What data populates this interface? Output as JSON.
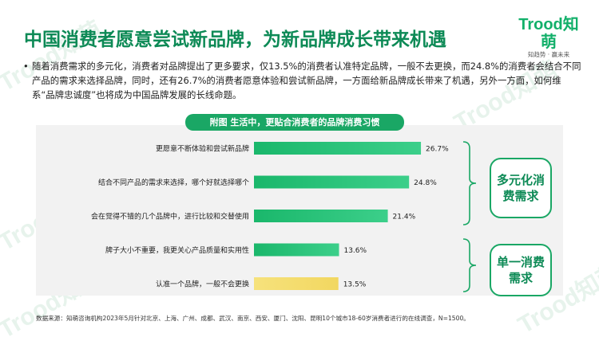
{
  "title": "中国消费者愿意尝试新品牌，为新品牌成长带来机遇",
  "logo": {
    "brand": "Trood知萌",
    "tagline": "知趋势 · 赢未来"
  },
  "bullet": "随着消费需求的多元化，消费者对品牌提出了更多要求，仅13.5%的消费者认准特定品牌，一般不去更换，而24.8%的消费者会结合不同产品的需求来选择品牌，同时，还有26.7%的消费者愿意体验和尝试新品牌，一方面给新品牌成长带来了机遇，另外一方面，如何维系“品牌忠诚度”也将成为中国品牌发展的长线命题。",
  "watermark": "Trood知萌",
  "groups": {
    "diverse": "多元化消费需求",
    "single": "单一消费需求"
  },
  "source": "数据来源：知萌咨询机构2023年5月针对北京、上海、广州、成都、武汉、南京、西安、厦门、沈阳、昆明10个城市18-60岁消费者进行的在线调查，N=1500。",
  "colors": {
    "green_bar": "#1ab76b",
    "green_bar_light": "#3ccf8a",
    "yellow_bar": "#f2d760",
    "accent": "#0d8a56"
  },
  "chart_data": {
    "type": "bar",
    "orientation": "horizontal",
    "title": "附图 生活中，更贴合消费者的品牌消费习惯",
    "categories": [
      "更愿意不断体验和尝试新品牌",
      "结合不同产品的需求来选择，哪个好就选择哪个",
      "会在觉得不错的几个品牌中，进行比较和交替使用",
      "牌子大小不重要，我更关心产品质量和实用性",
      "认准一个品牌，一般不会更换"
    ],
    "values": [
      26.7,
      24.8,
      21.4,
      13.6,
      13.5
    ],
    "value_labels": [
      "26.7%",
      "24.8%",
      "21.4%",
      "13.6%",
      "13.5%"
    ],
    "highlight": [
      false,
      false,
      false,
      false,
      true
    ],
    "xlim": [
      0,
      30
    ],
    "unit": "%"
  }
}
